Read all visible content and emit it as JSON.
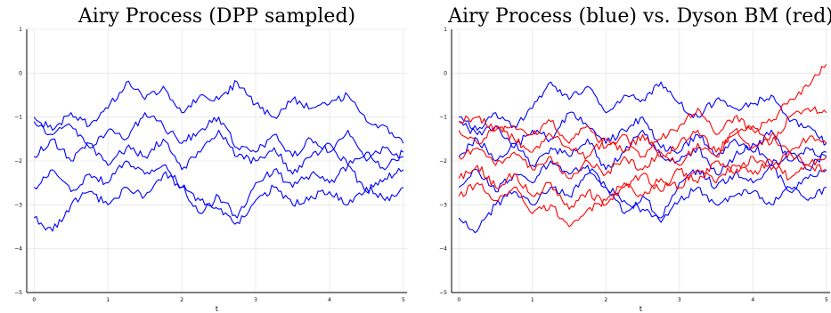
{
  "chart_data": [
    {
      "type": "line",
      "title": "Airy Process (DPP sampled)",
      "xlabel": "t",
      "ylabel": "",
      "xlim": [
        -0.1,
        5.05
      ],
      "ylim": [
        -5,
        1
      ],
      "xticks": [
        0,
        1,
        2,
        3,
        4,
        5
      ],
      "yticks": [
        -5,
        -4,
        -3,
        -2,
        -1,
        0,
        1
      ],
      "grid": true,
      "legend": "none",
      "series": [
        {
          "color": "#0000ff",
          "x": [
            0,
            0.25,
            0.5,
            0.75,
            1.0,
            1.25,
            1.5,
            1.75,
            2.0,
            2.25,
            2.5,
            2.75,
            3.0,
            3.25,
            3.5,
            3.75,
            4.0,
            4.25,
            4.5,
            4.75,
            5.0
          ],
          "values": [
            -1.0,
            -1.3,
            -0.9,
            -1.2,
            -0.8,
            -0.2,
            -0.6,
            -0.3,
            -0.9,
            -0.5,
            -0.6,
            -0.2,
            -0.7,
            -1.0,
            -0.6,
            -0.8,
            -0.7,
            -0.5,
            -1.1,
            -1.2,
            -1.6
          ]
        },
        {
          "color": "#0000ff",
          "x": [
            0,
            0.25,
            0.5,
            0.75,
            1.0,
            1.25,
            1.5,
            1.75,
            2.0,
            2.25,
            2.5,
            2.75,
            3.0,
            3.25,
            3.5,
            3.75,
            4.0,
            4.25,
            4.5,
            4.75,
            5.0
          ],
          "values": [
            -1.1,
            -1.4,
            -1.2,
            -1.7,
            -1.3,
            -1.5,
            -0.9,
            -1.2,
            -1.6,
            -1.3,
            -1.0,
            -1.7,
            -1.8,
            -1.4,
            -1.9,
            -1.5,
            -1.8,
            -1.3,
            -2.0,
            -1.7,
            -1.9
          ]
        },
        {
          "color": "#0000ff",
          "x": [
            0,
            0.25,
            0.5,
            0.75,
            1.0,
            1.25,
            1.5,
            1.75,
            2.0,
            2.25,
            2.5,
            2.75,
            3.0,
            3.25,
            3.5,
            3.75,
            4.0,
            4.25,
            4.5,
            4.75,
            5.0
          ],
          "values": [
            -1.9,
            -1.5,
            -2.0,
            -1.6,
            -2.1,
            -1.7,
            -1.9,
            -1.5,
            -2.2,
            -1.8,
            -1.3,
            -1.9,
            -2.0,
            -1.7,
            -2.3,
            -1.9,
            -1.6,
            -2.1,
            -1.8,
            -2.2,
            -1.8
          ]
        },
        {
          "color": "#0000ff",
          "x": [
            0,
            0.25,
            0.5,
            0.75,
            1.0,
            1.25,
            1.5,
            1.75,
            2.0,
            2.25,
            2.5,
            2.75,
            3.0,
            3.25,
            3.5,
            3.75,
            4.0,
            4.25,
            4.5,
            4.75,
            5.0
          ],
          "values": [
            -2.6,
            -2.2,
            -2.7,
            -2.3,
            -2.5,
            -2.0,
            -2.3,
            -2.1,
            -2.6,
            -3.2,
            -2.8,
            -3.3,
            -2.5,
            -2.2,
            -2.6,
            -2.3,
            -2.5,
            -2.1,
            -2.7,
            -2.4,
            -2.2
          ]
        },
        {
          "color": "#0000ff",
          "x": [
            0,
            0.25,
            0.5,
            0.75,
            1.0,
            1.25,
            1.5,
            1.75,
            2.0,
            2.25,
            2.5,
            2.75,
            3.0,
            3.25,
            3.5,
            3.75,
            4.0,
            4.25,
            4.5,
            4.75,
            5.0
          ],
          "values": [
            -3.3,
            -3.6,
            -3.0,
            -2.7,
            -3.0,
            -2.6,
            -2.8,
            -2.3,
            -2.6,
            -2.9,
            -3.1,
            -3.4,
            -2.9,
            -2.6,
            -3.0,
            -2.8,
            -2.7,
            -3.0,
            -2.6,
            -2.9,
            -2.6
          ]
        }
      ]
    },
    {
      "type": "line",
      "title": "Airy Process (blue) vs. Dyson BM (red)",
      "xlabel": "t",
      "ylabel": "",
      "xlim": [
        -0.1,
        5.05
      ],
      "ylim": [
        -5,
        1
      ],
      "xticks": [
        0,
        1,
        2,
        3,
        4,
        5
      ],
      "yticks": [
        -5,
        -4,
        -3,
        -2,
        -1,
        0,
        1
      ],
      "grid": true,
      "legend": "none",
      "series": [
        {
          "color": "#0000ff",
          "x": [
            0,
            0.25,
            0.5,
            0.75,
            1.0,
            1.25,
            1.5,
            1.75,
            2.0,
            2.25,
            2.5,
            2.75,
            3.0,
            3.25,
            3.5,
            3.75,
            4.0,
            4.25,
            4.5,
            4.75,
            5.0
          ],
          "values": [
            -1.0,
            -1.3,
            -0.9,
            -1.2,
            -0.8,
            -0.2,
            -0.6,
            -0.3,
            -0.9,
            -0.5,
            -0.6,
            -0.2,
            -0.7,
            -1.0,
            -0.6,
            -0.8,
            -0.7,
            -0.5,
            -1.1,
            -1.2,
            -1.6
          ]
        },
        {
          "color": "#0000ff",
          "x": [
            0,
            0.25,
            0.5,
            0.75,
            1.0,
            1.25,
            1.5,
            1.75,
            2.0,
            2.25,
            2.5,
            2.75,
            3.0,
            3.25,
            3.5,
            3.75,
            4.0,
            4.25,
            4.5,
            4.75,
            5.0
          ],
          "values": [
            -1.1,
            -1.4,
            -1.2,
            -1.7,
            -1.3,
            -1.5,
            -0.9,
            -1.2,
            -1.6,
            -1.3,
            -1.0,
            -1.7,
            -1.8,
            -1.4,
            -1.9,
            -1.5,
            -1.8,
            -1.3,
            -2.0,
            -1.7,
            -1.9
          ]
        },
        {
          "color": "#0000ff",
          "x": [
            0,
            0.25,
            0.5,
            0.75,
            1.0,
            1.25,
            1.5,
            1.75,
            2.0,
            2.25,
            2.5,
            2.75,
            3.0,
            3.25,
            3.5,
            3.75,
            4.0,
            4.25,
            4.5,
            4.75,
            5.0
          ],
          "values": [
            -1.9,
            -1.5,
            -2.0,
            -1.6,
            -2.1,
            -1.7,
            -1.9,
            -1.5,
            -2.2,
            -1.8,
            -1.3,
            -1.9,
            -2.0,
            -1.7,
            -2.3,
            -1.9,
            -1.6,
            -2.1,
            -1.8,
            -2.2,
            -1.8
          ]
        },
        {
          "color": "#0000ff",
          "x": [
            0,
            0.25,
            0.5,
            0.75,
            1.0,
            1.25,
            1.5,
            1.75,
            2.0,
            2.25,
            2.5,
            2.75,
            3.0,
            3.25,
            3.5,
            3.75,
            4.0,
            4.25,
            4.5,
            4.75,
            5.0
          ],
          "values": [
            -2.6,
            -2.2,
            -2.7,
            -2.3,
            -2.5,
            -2.0,
            -2.3,
            -2.1,
            -2.6,
            -3.2,
            -2.8,
            -3.3,
            -2.5,
            -2.2,
            -2.6,
            -2.3,
            -2.5,
            -2.1,
            -2.7,
            -2.4,
            -2.2
          ]
        },
        {
          "color": "#0000ff",
          "x": [
            0,
            0.25,
            0.5,
            0.75,
            1.0,
            1.25,
            1.5,
            1.75,
            2.0,
            2.25,
            2.5,
            2.75,
            3.0,
            3.25,
            3.5,
            3.75,
            4.0,
            4.25,
            4.5,
            4.75,
            5.0
          ],
          "values": [
            -3.3,
            -3.6,
            -3.0,
            -2.7,
            -3.0,
            -2.6,
            -2.8,
            -2.3,
            -2.6,
            -2.9,
            -3.1,
            -3.4,
            -2.9,
            -2.6,
            -3.0,
            -2.8,
            -2.7,
            -3.0,
            -2.6,
            -2.9,
            -2.6
          ]
        },
        {
          "color": "#ff0000",
          "x": [
            0,
            0.25,
            0.5,
            0.75,
            1.0,
            1.25,
            1.5,
            1.75,
            2.0,
            2.25,
            2.5,
            2.75,
            3.0,
            3.25,
            3.5,
            3.75,
            4.0,
            4.25,
            4.5,
            4.75,
            5.0
          ],
          "values": [
            -1.1,
            -1.0,
            -1.3,
            -1.2,
            -1.4,
            -1.1,
            -1.6,
            -1.2,
            -1.7,
            -1.4,
            -1.9,
            -1.5,
            -1.2,
            -0.8,
            -1.4,
            -1.0,
            -1.3,
            -1.1,
            -0.6,
            -0.3,
            0.2
          ]
        },
        {
          "color": "#ff0000",
          "x": [
            0,
            0.25,
            0.5,
            0.75,
            1.0,
            1.25,
            1.5,
            1.75,
            2.0,
            2.25,
            2.5,
            2.75,
            3.0,
            3.25,
            3.5,
            3.75,
            4.0,
            4.25,
            4.5,
            4.75,
            5.0
          ],
          "values": [
            -1.3,
            -1.6,
            -1.2,
            -1.5,
            -1.8,
            -1.4,
            -1.7,
            -1.9,
            -1.5,
            -1.8,
            -1.4,
            -1.9,
            -1.6,
            -1.3,
            -1.8,
            -1.4,
            -1.2,
            -1.6,
            -1.0,
            -0.8,
            -0.9
          ]
        },
        {
          "color": "#ff0000",
          "x": [
            0,
            0.25,
            0.5,
            0.75,
            1.0,
            1.25,
            1.5,
            1.75,
            2.0,
            2.25,
            2.5,
            2.75,
            3.0,
            3.25,
            3.5,
            3.75,
            4.0,
            4.25,
            4.5,
            4.75,
            5.0
          ],
          "values": [
            -1.9,
            -1.7,
            -2.1,
            -1.8,
            -2.2,
            -1.9,
            -2.4,
            -2.0,
            -2.3,
            -1.9,
            -2.2,
            -1.8,
            -2.1,
            -1.6,
            -1.9,
            -1.3,
            -1.7,
            -1.4,
            -1.8,
            -1.5,
            -1.6
          ]
        },
        {
          "color": "#ff0000",
          "x": [
            0,
            0.25,
            0.5,
            0.75,
            1.0,
            1.25,
            1.5,
            1.75,
            2.0,
            2.25,
            2.5,
            2.75,
            3.0,
            3.25,
            3.5,
            3.75,
            4.0,
            4.25,
            4.5,
            4.75,
            5.0
          ],
          "values": [
            -2.4,
            -2.1,
            -2.6,
            -2.3,
            -2.8,
            -2.5,
            -3.1,
            -2.7,
            -3.0,
            -2.6,
            -2.3,
            -2.7,
            -2.2,
            -2.5,
            -2.0,
            -2.3,
            -1.9,
            -2.2,
            -1.8,
            -2.1,
            -1.9
          ]
        },
        {
          "color": "#ff0000",
          "x": [
            0,
            0.25,
            0.5,
            0.75,
            1.0,
            1.25,
            1.5,
            1.75,
            2.0,
            2.25,
            2.5,
            2.75,
            3.0,
            3.25,
            3.5,
            3.75,
            4.0,
            4.25,
            4.5,
            4.75,
            5.0
          ],
          "values": [
            -2.8,
            -2.5,
            -2.9,
            -2.6,
            -3.2,
            -3.0,
            -3.5,
            -3.1,
            -2.9,
            -2.5,
            -2.8,
            -2.4,
            -2.6,
            -2.2,
            -2.5,
            -2.1,
            -2.3,
            -2.0,
            -2.4,
            -2.1,
            -2.2
          ]
        }
      ]
    }
  ]
}
